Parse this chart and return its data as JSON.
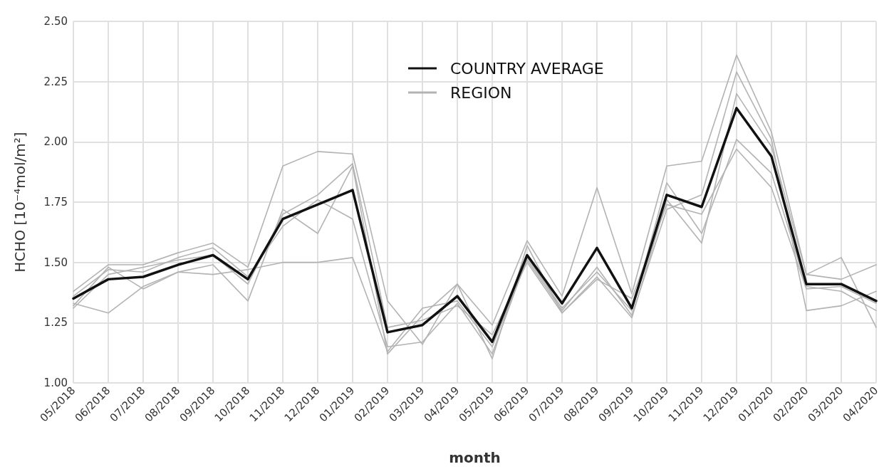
{
  "chart_data": {
    "type": "line",
    "xlabel": "month",
    "ylabel": "HCHO [10⁻⁴mol/m²]",
    "categories": [
      "05/2018",
      "06/2018",
      "07/2018",
      "08/2018",
      "09/2018",
      "10/2018",
      "11/2018",
      "12/2018",
      "01/2019",
      "02/2019",
      "03/2019",
      "04/2019",
      "05/2019",
      "06/2019",
      "07/2019",
      "08/2019",
      "09/2019",
      "10/2019",
      "11/2019",
      "12/2019",
      "01/2020",
      "02/2020",
      "03/2020",
      "04/2020"
    ],
    "series": [
      {
        "name": "REGION",
        "color": "#b3b3b3",
        "values": [
          1.38,
          1.49,
          1.49,
          1.54,
          1.58,
          1.48,
          1.9,
          1.96,
          1.95,
          1.34,
          1.16,
          1.41,
          1.24,
          1.59,
          1.36,
          1.81,
          1.37,
          1.9,
          1.92,
          2.36,
          2.04,
          1.45,
          1.43,
          1.49
        ]
      },
      {
        "color": "#b3b3b3",
        "values": [
          1.32,
          1.48,
          1.39,
          1.46,
          1.45,
          1.47,
          1.5,
          1.5,
          1.52,
          1.13,
          1.31,
          1.34,
          1.15,
          1.51,
          1.3,
          1.48,
          1.28,
          1.72,
          1.78,
          2.29,
          2.01,
          1.3,
          1.32,
          1.38
        ]
      },
      {
        "color": "#b3b3b3",
        "values": [
          1.33,
          1.29,
          1.4,
          1.46,
          1.49,
          1.34,
          1.72,
          1.62,
          1.9,
          1.12,
          1.28,
          1.41,
          1.1,
          1.57,
          1.29,
          1.44,
          1.27,
          1.76,
          1.58,
          2.2,
          1.98,
          1.45,
          1.52,
          1.23
        ]
      },
      {
        "color": "#b3b3b3",
        "values": [
          1.36,
          1.47,
          1.46,
          1.52,
          1.56,
          1.44,
          1.65,
          1.76,
          1.68,
          1.15,
          1.17,
          1.33,
          1.12,
          1.52,
          1.31,
          1.46,
          1.3,
          1.83,
          1.62,
          2.01,
          1.87,
          1.4,
          1.38,
          1.3
        ]
      },
      {
        "color": "#b3b3b3",
        "values": [
          1.31,
          1.45,
          1.48,
          1.51,
          1.53,
          1.41,
          1.7,
          1.78,
          1.91,
          1.23,
          1.26,
          1.32,
          1.2,
          1.5,
          1.29,
          1.43,
          1.35,
          1.74,
          1.7,
          1.97,
          1.81,
          1.39,
          1.4,
          1.33
        ]
      },
      {
        "name": "COUNTRY AVERAGE",
        "color": "#111111",
        "values": [
          1.35,
          1.43,
          1.44,
          1.49,
          1.53,
          1.43,
          1.68,
          1.74,
          1.8,
          1.21,
          1.24,
          1.36,
          1.17,
          1.53,
          1.33,
          1.56,
          1.31,
          1.78,
          1.73,
          2.14,
          1.94,
          1.41,
          1.41,
          1.34
        ]
      }
    ],
    "ylim": [
      1,
      2.5
    ],
    "yticks": [
      {
        "value": 1,
        "label": "1.00"
      },
      {
        "value": 1.25,
        "label": "1.25"
      },
      {
        "value": 1.5,
        "label": "1.50"
      },
      {
        "value": 1.75,
        "label": "1.75"
      },
      {
        "value": 2,
        "label": "2.00"
      },
      {
        "value": 2.25,
        "label": "2.25"
      },
      {
        "value": 2.5,
        "label": "2.50"
      }
    ],
    "grid": true,
    "legend": "top",
    "marker": "none",
    "line_style": "solid"
  }
}
